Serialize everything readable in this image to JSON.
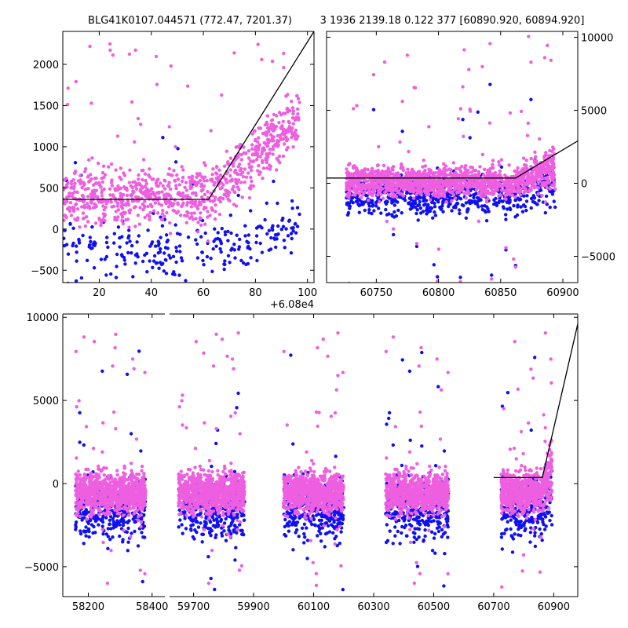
{
  "titles": {
    "left": "BLG41K0107.044571 (772.47, 7201.37)",
    "right": "3 1936 2139.18 0.122 377 [60890.920, 60894.920]"
  },
  "colors": {
    "series_a": "#ee5fe0",
    "series_b": "#1010f0",
    "model": "#000000",
    "background": "#ffffff"
  },
  "chart_data": [
    {
      "id": "top-left",
      "type": "scatter",
      "xlim": [
        60806,
        60902.5
      ],
      "ylim": [
        -650,
        2400
      ],
      "x_offset_label": "+6.08e4",
      "x_offset": 60800,
      "x_ticks": [
        60820,
        60840,
        60860,
        60880,
        60900
      ],
      "x_tick_labels": [
        "20",
        "40",
        "60",
        "80",
        "100"
      ],
      "y_ticks": [
        -500,
        0,
        500,
        1000,
        1500,
        2000
      ],
      "y_tick_labels": [
        "−500",
        "0",
        "500",
        "1000",
        "1500",
        "2000"
      ],
      "y_axis_side": "left",
      "series": [
        {
          "name": "magenta",
          "x_range": [
            60806,
            60897
          ],
          "y_center": 400,
          "y_spread": 300,
          "n": 900,
          "break_x": 60862,
          "rise_slope": 28,
          "outlier_max": 2300
        },
        {
          "name": "blue",
          "x_range": [
            60806,
            60897
          ],
          "y_center": -250,
          "y_spread": 280,
          "n": 260,
          "break_x": 60862,
          "rise_slope": 8,
          "outlier_max": 1500
        }
      ],
      "model_line": {
        "x": [
          60806,
          60862,
          60902.5
        ],
        "y": [
          360,
          360,
          2400
        ]
      }
    },
    {
      "id": "top-right",
      "type": "scatter",
      "xlim": [
        60710,
        60912
      ],
      "ylim": [
        -6800,
        10400
      ],
      "x_ticks": [
        60750,
        60800,
        60850,
        60900
      ],
      "x_tick_labels": [
        "60750",
        "60800",
        "60850",
        "60900"
      ],
      "y_ticks": [
        -5000,
        0,
        5000,
        10000
      ],
      "y_tick_labels": [
        "−5000",
        "0",
        "5000",
        "10000"
      ],
      "y_axis_side": "right",
      "series": [
        {
          "name": "magenta",
          "x_range": [
            60726,
            60894
          ],
          "y_center": 100,
          "y_spread": 900,
          "n": 1500,
          "outlier_max": 10000
        },
        {
          "name": "blue",
          "x_range": [
            60726,
            60894
          ],
          "y_center": -900,
          "y_spread": 1200,
          "n": 650,
          "outlier_max": 8100
        }
      ],
      "model_line": {
        "x": [
          60710,
          60862,
          60912
        ],
        "y": [
          360,
          360,
          2900
        ]
      }
    },
    {
      "id": "bottom",
      "type": "scatter",
      "broken_x_axis": true,
      "segments": [
        {
          "xlim": [
            58120,
            58440
          ],
          "x_ticks": [
            58200,
            58400
          ],
          "x_tick_labels": [
            "58200",
            "58400"
          ],
          "clusters": [
            [
              58160,
              58380
            ]
          ]
        },
        {
          "xlim": [
            59620,
            60980
          ],
          "x_ticks": [
            59700,
            59900,
            60100,
            60300,
            60500,
            60700,
            60900
          ],
          "x_tick_labels": [
            "59700",
            "59900",
            "60100",
            "60300",
            "60500",
            "60700",
            "60900"
          ],
          "clusters": [
            [
              59650,
              59870
            ],
            [
              60000,
              60200
            ],
            [
              60340,
              60550
            ],
            [
              60725,
              60894
            ]
          ]
        }
      ],
      "ylim": [
        -6800,
        10200
      ],
      "y_ticks": [
        -5000,
        0,
        5000,
        10000
      ],
      "y_tick_labels": [
        "−5000",
        "0",
        "5000",
        "10000"
      ],
      "y_axis_side": "left",
      "series": [
        {
          "name": "magenta",
          "y_center": -500,
          "y_spread": 1000,
          "n_per_cluster": 900,
          "outlier_max": 9600
        },
        {
          "name": "blue",
          "y_center": -1500,
          "y_spread": 1500,
          "n_per_cluster": 360,
          "outlier_max": 9500
        }
      ],
      "model_line": {
        "x": [
          60700,
          60862,
          60980
        ],
        "y": [
          360,
          360,
          9600
        ]
      }
    }
  ]
}
